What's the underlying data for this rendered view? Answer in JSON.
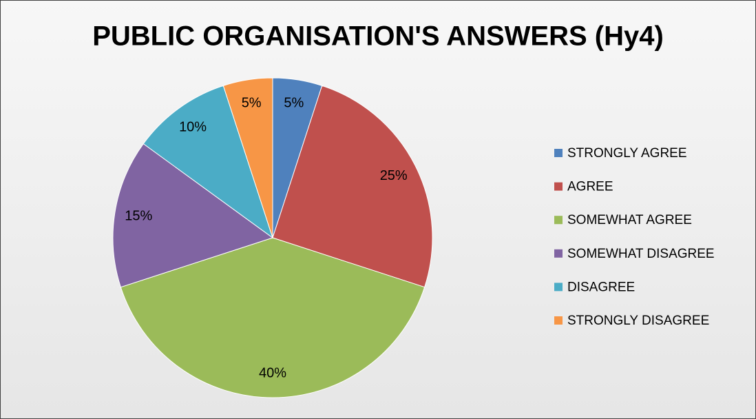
{
  "chart_data": {
    "type": "pie",
    "title": "PUBLIC ORGANISATION'S ANSWERS (Hy4)",
    "categories": [
      "STRONGLY AGREE",
      "AGREE",
      "SOMEWHAT AGREE",
      "SOMEWHAT DISAGREE",
      "DISAGREE",
      "STRONGLY DISAGREE"
    ],
    "values": [
      5,
      25,
      40,
      15,
      10,
      5
    ],
    "value_labels": [
      "5%",
      "25%",
      "40%",
      "15%",
      "10%",
      "5%"
    ],
    "colors": [
      "#4f81bd",
      "#c0504d",
      "#9bbb59",
      "#8064a2",
      "#4bacc6",
      "#f79646"
    ],
    "legend": "right"
  }
}
